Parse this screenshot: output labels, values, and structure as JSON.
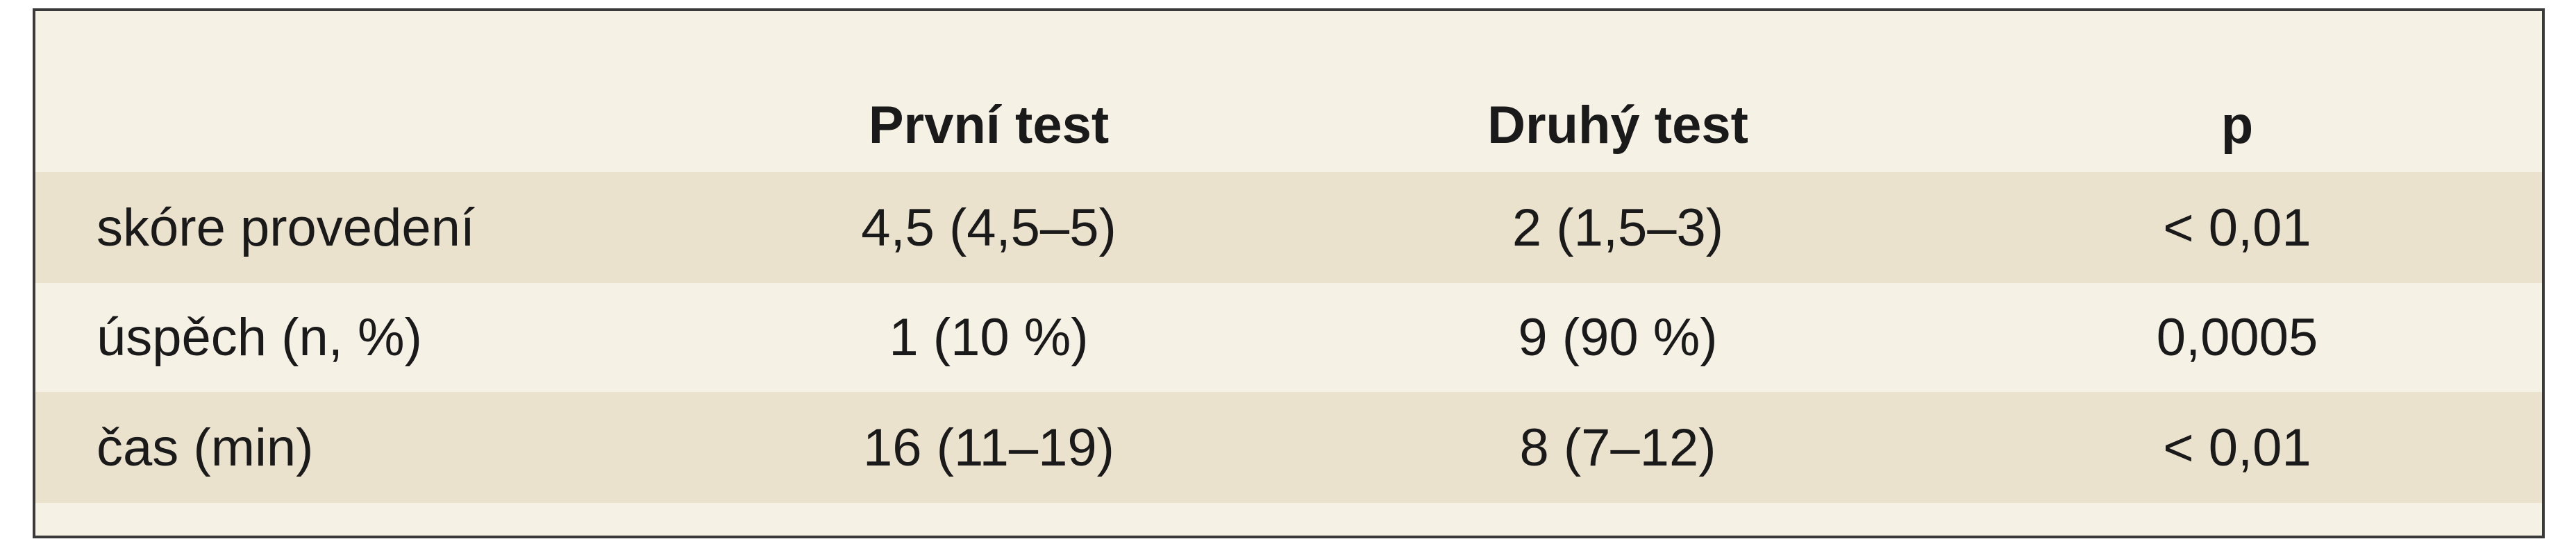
{
  "table": {
    "headers": [
      "První test",
      "Druhý test",
      "p"
    ],
    "rows": [
      [
        "skóre provedení",
        "4,5 (4,5–5)",
        "2 (1,5–3)",
        "< 0,01"
      ],
      [
        "úspěch (n, %)",
        "1 (10 %)",
        "9 (90 %)",
        "0,0005"
      ],
      [
        "čas (min)",
        "16 (11–19)",
        "8 (7–12)",
        "< 0,01"
      ]
    ]
  }
}
